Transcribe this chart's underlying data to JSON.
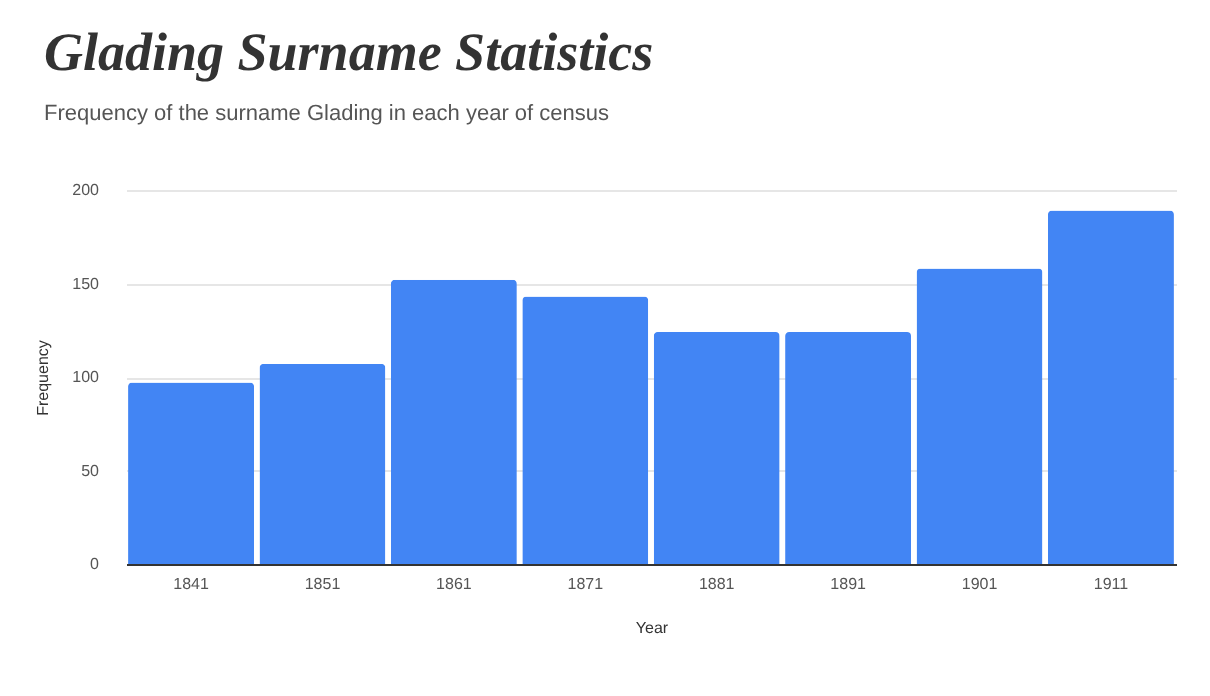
{
  "chart_data": {
    "type": "bar",
    "title": "Glading Surname Statistics",
    "subtitle": "Frequency of the surname Glading in each year of census",
    "xlabel": "Year",
    "ylabel": "Frequency",
    "categories": [
      "1841",
      "1851",
      "1861",
      "1871",
      "1881",
      "1891",
      "1901",
      "1911"
    ],
    "values": [
      97,
      107,
      152,
      143,
      124,
      124,
      158,
      189
    ],
    "color": "#4285f4",
    "ylim": [
      0,
      200
    ],
    "yticks": [
      0,
      50,
      100,
      150,
      200
    ],
    "grid": "y"
  }
}
